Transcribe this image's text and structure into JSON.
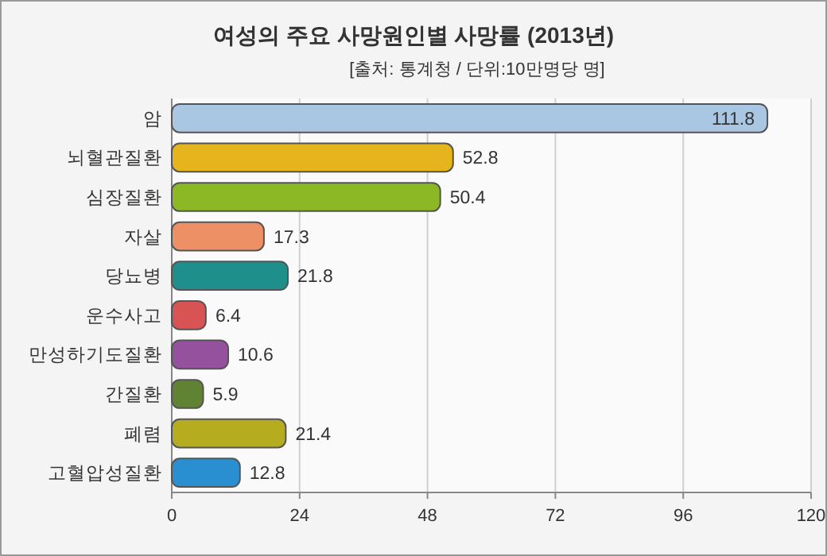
{
  "chart_data": {
    "type": "bar",
    "orientation": "horizontal",
    "title": "여성의 주요 사망원인별 사망률 (2013년)",
    "subtitle": "[출처: 통계청 / 단위:10만명당 명]",
    "categories": [
      "암",
      "뇌혈관질환",
      "심장질환",
      "자살",
      "당뇨병",
      "운수사고",
      "만성하기도질환",
      "간질환",
      "폐렴",
      "고혈압성질환"
    ],
    "values": [
      111.8,
      52.8,
      50.4,
      17.3,
      21.8,
      6.4,
      10.6,
      5.9,
      21.4,
      12.8
    ],
    "colors": [
      "#a9c6e2",
      "#e6b51e",
      "#8cb825",
      "#ee9066",
      "#1f8f8c",
      "#d85454",
      "#95519e",
      "#5f8233",
      "#b5ad1f",
      "#2a8fd0"
    ],
    "xlim": [
      0,
      120
    ],
    "xticks": [
      0,
      24,
      48,
      72,
      96,
      120
    ],
    "grid": "x",
    "data_labels": true
  }
}
